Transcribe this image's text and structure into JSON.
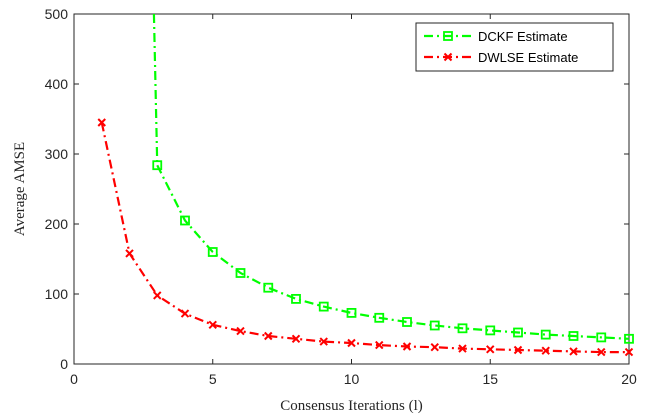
{
  "chart_data": {
    "type": "line",
    "xlabel": "Consensus Iterations (l)",
    "ylabel": "Average AMSE",
    "xlim": [
      0,
      20
    ],
    "ylim": [
      0,
      500
    ],
    "xticks": [
      0,
      5,
      10,
      15,
      20
    ],
    "yticks": [
      0,
      100,
      200,
      300,
      400,
      500
    ],
    "grid": false,
    "legend_position": "top-right",
    "series": [
      {
        "name": "DCKF Estimate",
        "color": "#00ff00",
        "marker": "square",
        "line_style": "dash-dot",
        "entry_segment": {
          "x": [
            2.88,
            3
          ],
          "y": [
            500,
            284
          ]
        },
        "x": [
          3,
          4,
          5,
          6,
          7,
          8,
          9,
          10,
          11,
          12,
          13,
          14,
          15,
          16,
          17,
          18,
          19,
          20
        ],
        "y": [
          284,
          205,
          160,
          130,
          109,
          93,
          82,
          73,
          66,
          60,
          55,
          51,
          48,
          45,
          42,
          40,
          38,
          36
        ]
      },
      {
        "name": "DWLSE Estimate",
        "color": "#ff0000",
        "marker": "x",
        "line_style": "dash-dot",
        "x": [
          1,
          2,
          3,
          4,
          5,
          6,
          7,
          8,
          9,
          10,
          11,
          12,
          13,
          14,
          15,
          16,
          17,
          18,
          19,
          20
        ],
        "y": [
          345,
          158,
          98,
          72,
          56,
          47,
          40,
          36,
          32,
          30,
          27,
          25,
          24,
          22,
          21,
          20,
          19,
          18,
          17,
          17
        ]
      }
    ]
  }
}
